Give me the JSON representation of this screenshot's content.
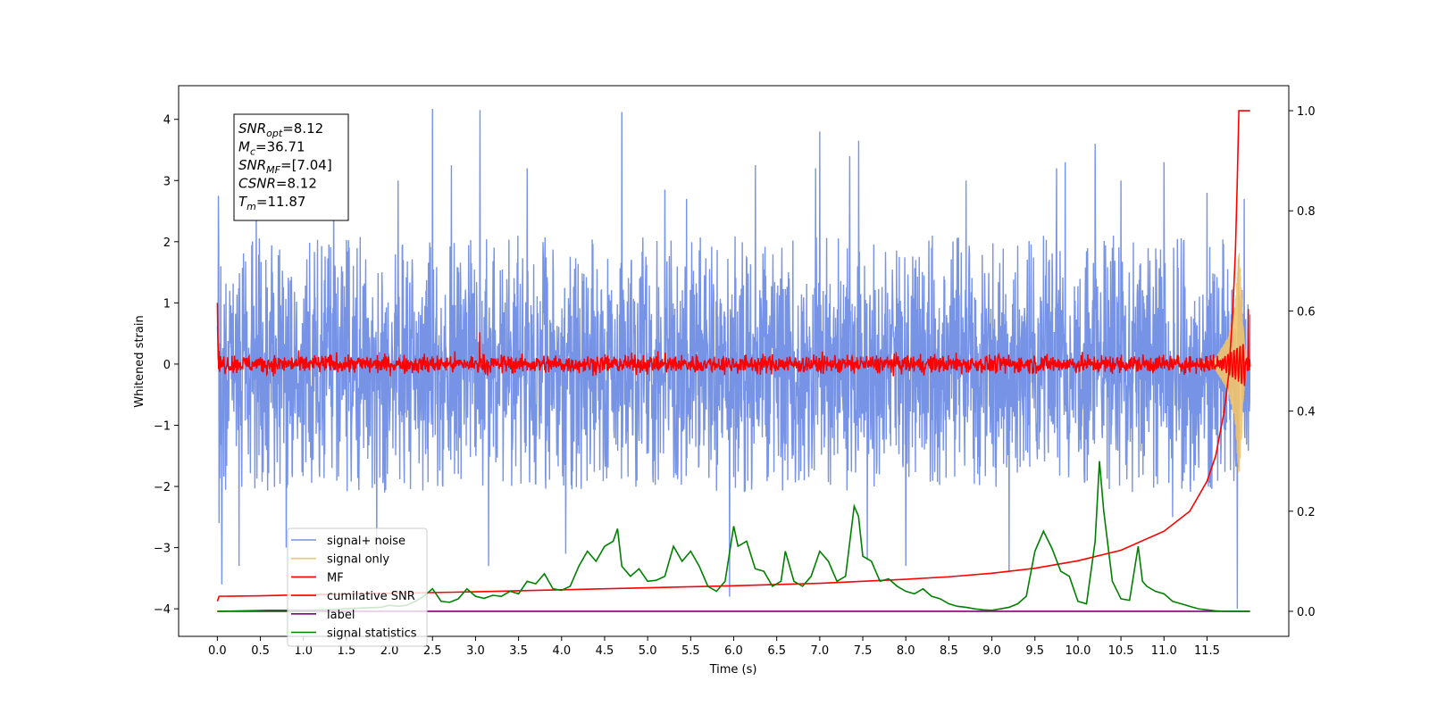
{
  "chart_data": {
    "type": "line",
    "xlabel": "Time (s)",
    "ylabel_left": "Whitened strain",
    "ylabel_right": "",
    "xlim": [
      -0.45,
      12.45
    ],
    "ylim_left": [
      -4.45,
      4.55
    ],
    "ylim_right": [
      -0.05,
      1.05
    ],
    "x_ticks": [
      0.0,
      0.5,
      1.0,
      1.5,
      2.0,
      2.5,
      3.0,
      3.5,
      4.0,
      4.5,
      5.0,
      5.5,
      6.0,
      6.5,
      7.0,
      7.5,
      8.0,
      8.5,
      9.0,
      9.5,
      10.0,
      10.5,
      11.0,
      11.5
    ],
    "x_tick_labels": [
      "0.0",
      "0.5",
      "1.0",
      "1.5",
      "2.0",
      "2.5",
      "3.0",
      "3.5",
      "4.0",
      "4.5",
      "5.0",
      "5.5",
      "6.0",
      "6.5",
      "7.0",
      "7.5",
      "8.0",
      "8.5",
      "9.0",
      "9.5",
      "10.0",
      "10.5",
      "11.0",
      "11.5"
    ],
    "y_ticks_left": [
      -4,
      -3,
      -2,
      -1,
      0,
      1,
      2,
      3,
      4
    ],
    "y_tick_labels_left": [
      "−4",
      "−3",
      "−2",
      "−1",
      "0",
      "1",
      "2",
      "3",
      "4"
    ],
    "y_ticks_right": [
      0.0,
      0.2,
      0.4,
      0.6,
      0.8,
      1.0
    ],
    "y_tick_labels_right": [
      "0.0",
      "0.2",
      "0.4",
      "0.6",
      "0.8",
      "1.0"
    ],
    "grid": false,
    "legend_position": "lower-left",
    "info_box": {
      "position": "top-left",
      "lines": [
        {
          "base": "SNR",
          "sub": "opt",
          "value": "=8.12"
        },
        {
          "base": "M",
          "sub": "c",
          "value": "=36.71"
        },
        {
          "base": "SNR",
          "sub": "MF",
          "value": "=[7.04]"
        },
        {
          "base": "CSNR",
          "sub": "",
          "value": "=8.12"
        },
        {
          "base": "T",
          "sub": "m",
          "value": "=11.87"
        }
      ]
    },
    "series": [
      {
        "name": "signal+ noise",
        "color": "#7693e6",
        "axis": "left",
        "x_range": [
          0.0,
          12.0
        ],
        "envelope_typical": 1.2,
        "spikes": [
          {
            "x": 0.01,
            "y": 2.75
          },
          {
            "x": 0.02,
            "y": -2.6
          },
          {
            "x": 0.05,
            "y": -3.6
          },
          {
            "x": 0.25,
            "y": -3.3
          },
          {
            "x": 0.45,
            "y": 2.6
          },
          {
            "x": 0.8,
            "y": -3.0
          },
          {
            "x": 1.35,
            "y": 2.9
          },
          {
            "x": 1.85,
            "y": -3.2
          },
          {
            "x": 2.1,
            "y": 3.0
          },
          {
            "x": 2.5,
            "y": 4.17
          },
          {
            "x": 2.72,
            "y": 3.25
          },
          {
            "x": 3.05,
            "y": 4.15
          },
          {
            "x": 3.15,
            "y": -3.3
          },
          {
            "x": 3.6,
            "y": 3.2
          },
          {
            "x": 4.05,
            "y": -3.1
          },
          {
            "x": 4.7,
            "y": 4.12
          },
          {
            "x": 5.2,
            "y": 2.85
          },
          {
            "x": 5.45,
            "y": 2.7
          },
          {
            "x": 5.95,
            "y": -3.8
          },
          {
            "x": 6.25,
            "y": 3.25
          },
          {
            "x": 6.95,
            "y": 3.2
          },
          {
            "x": 7.0,
            "y": 3.8
          },
          {
            "x": 7.35,
            "y": 3.4
          },
          {
            "x": 7.45,
            "y": 3.65
          },
          {
            "x": 7.55,
            "y": -3.2
          },
          {
            "x": 8.0,
            "y": -3.3
          },
          {
            "x": 8.7,
            "y": 3.0
          },
          {
            "x": 9.2,
            "y": -3.4
          },
          {
            "x": 9.75,
            "y": 3.2
          },
          {
            "x": 9.85,
            "y": 3.3
          },
          {
            "x": 10.2,
            "y": 3.6
          },
          {
            "x": 10.5,
            "y": 3.0
          },
          {
            "x": 11.0,
            "y": 3.3
          },
          {
            "x": 11.1,
            "y": -2.5
          },
          {
            "x": 11.5,
            "y": 2.8
          },
          {
            "x": 11.85,
            "y": -4.0
          },
          {
            "x": 11.93,
            "y": 2.7
          }
        ]
      },
      {
        "name": "signal only",
        "color": "#f2c36b",
        "axis": "left",
        "description_points": [
          {
            "x": 11.6,
            "y_amplitude": 0.1
          },
          {
            "x": 11.75,
            "y_amplitude": 0.45
          },
          {
            "x": 11.83,
            "y_amplitude": 1.0
          },
          {
            "x": 11.87,
            "y_amplitude": 1.9
          }
        ]
      },
      {
        "name": "MF",
        "color": "#ff0000",
        "axis": "left",
        "start": {
          "x": 0.0,
          "y": 1.0
        },
        "baseline_amplitude": 0.25,
        "peaks": [
          {
            "x": 3.05,
            "y": 0.52
          },
          {
            "x": 11.87,
            "y": 1.0
          },
          {
            "x": 11.98,
            "y": 0.9
          }
        ]
      },
      {
        "name": "cumilative SNR",
        "color": "#ff0000",
        "axis": "right",
        "x": [
          0.0,
          0.02,
          0.5,
          1.0,
          2.0,
          3.0,
          4.0,
          5.0,
          6.0,
          7.0,
          8.0,
          8.5,
          9.0,
          9.5,
          10.0,
          10.5,
          11.0,
          11.3,
          11.5,
          11.6,
          11.7,
          11.75,
          11.8,
          11.83,
          11.85,
          11.87,
          11.9,
          12.0
        ],
        "values": [
          0.02,
          0.03,
          0.031,
          0.033,
          0.036,
          0.039,
          0.043,
          0.047,
          0.051,
          0.056,
          0.064,
          0.069,
          0.076,
          0.086,
          0.101,
          0.122,
          0.16,
          0.2,
          0.26,
          0.31,
          0.4,
          0.47,
          0.6,
          0.72,
          0.85,
          1.0,
          1.0,
          1.0
        ]
      },
      {
        "name": "label",
        "color": "#800080",
        "axis": "right",
        "x": [
          0.0,
          12.0
        ],
        "values": [
          0.0,
          0.0
        ]
      },
      {
        "name": "signal statistics",
        "color": "#008000",
        "axis": "right",
        "x": [
          0.0,
          0.3,
          0.6,
          1.0,
          1.3,
          1.6,
          1.9,
          2.0,
          2.1,
          2.2,
          2.3,
          2.4,
          2.5,
          2.6,
          2.7,
          2.8,
          2.9,
          3.0,
          3.1,
          3.2,
          3.3,
          3.4,
          3.5,
          3.6,
          3.7,
          3.8,
          3.9,
          4.0,
          4.1,
          4.2,
          4.3,
          4.4,
          4.5,
          4.6,
          4.65,
          4.7,
          4.8,
          4.9,
          5.0,
          5.1,
          5.2,
          5.3,
          5.4,
          5.5,
          5.6,
          5.7,
          5.8,
          5.9,
          6.0,
          6.05,
          6.15,
          6.25,
          6.35,
          6.45,
          6.55,
          6.6,
          6.7,
          6.8,
          6.9,
          7.0,
          7.1,
          7.2,
          7.3,
          7.4,
          7.45,
          7.5,
          7.6,
          7.7,
          7.8,
          7.9,
          8.0,
          8.1,
          8.2,
          8.3,
          8.4,
          8.5,
          8.6,
          8.7,
          8.8,
          8.9,
          9.0,
          9.1,
          9.2,
          9.3,
          9.4,
          9.5,
          9.6,
          9.7,
          9.8,
          9.9,
          10.0,
          10.1,
          10.2,
          10.25,
          10.3,
          10.4,
          10.5,
          10.6,
          10.7,
          10.75,
          10.8,
          10.9,
          11.0,
          11.1,
          11.2,
          11.3,
          11.4,
          11.5,
          11.6,
          11.7,
          11.8,
          11.9,
          12.0
        ],
        "values": [
          0.0,
          0.001,
          0.002,
          0.002,
          0.003,
          0.006,
          0.008,
          0.012,
          0.01,
          0.012,
          0.02,
          0.03,
          0.045,
          0.02,
          0.018,
          0.025,
          0.045,
          0.03,
          0.026,
          0.032,
          0.03,
          0.04,
          0.035,
          0.06,
          0.055,
          0.075,
          0.045,
          0.042,
          0.05,
          0.09,
          0.12,
          0.1,
          0.13,
          0.14,
          0.165,
          0.09,
          0.07,
          0.085,
          0.06,
          0.062,
          0.07,
          0.13,
          0.1,
          0.12,
          0.09,
          0.05,
          0.04,
          0.06,
          0.17,
          0.13,
          0.14,
          0.085,
          0.08,
          0.05,
          0.06,
          0.12,
          0.06,
          0.05,
          0.07,
          0.12,
          0.1,
          0.06,
          0.07,
          0.21,
          0.19,
          0.11,
          0.1,
          0.06,
          0.065,
          0.05,
          0.04,
          0.035,
          0.045,
          0.03,
          0.025,
          0.015,
          0.01,
          0.008,
          0.005,
          0.003,
          0.002,
          0.005,
          0.008,
          0.015,
          0.03,
          0.12,
          0.16,
          0.125,
          0.08,
          0.07,
          0.02,
          0.015,
          0.14,
          0.3,
          0.2,
          0.06,
          0.025,
          0.022,
          0.13,
          0.06,
          0.05,
          0.04,
          0.035,
          0.02,
          0.015,
          0.01,
          0.005,
          0.003,
          0.001,
          0.0,
          0.0,
          0.0,
          0.0
        ]
      }
    ]
  }
}
